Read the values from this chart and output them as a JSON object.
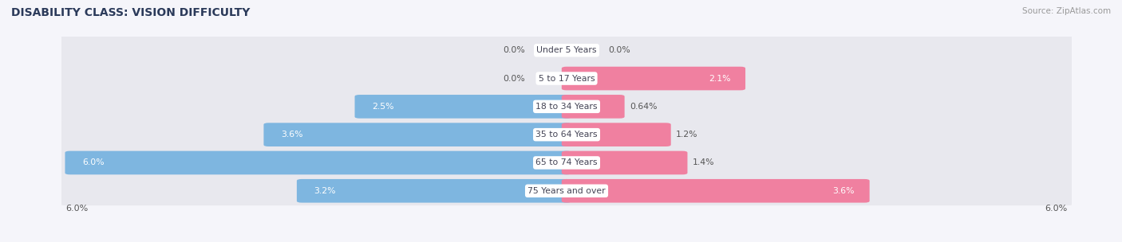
{
  "title": "DISABILITY CLASS: VISION DIFFICULTY",
  "source": "Source: ZipAtlas.com",
  "categories": [
    "Under 5 Years",
    "5 to 17 Years",
    "18 to 34 Years",
    "35 to 64 Years",
    "65 to 74 Years",
    "75 Years and over"
  ],
  "male_values": [
    0.0,
    0.0,
    2.5,
    3.6,
    6.0,
    3.2
  ],
  "female_values": [
    0.0,
    2.1,
    0.64,
    1.2,
    1.4,
    3.6
  ],
  "male_labels": [
    "0.0%",
    "0.0%",
    "2.5%",
    "3.6%",
    "6.0%",
    "3.2%"
  ],
  "female_labels": [
    "0.0%",
    "2.1%",
    "0.64%",
    "1.2%",
    "1.4%",
    "3.6%"
  ],
  "male_color": "#7EB6E0",
  "female_color": "#F080A0",
  "row_bg_color": "#E8E8EE",
  "background_color": "#F5F5FA",
  "max_value": 6.0,
  "title_color": "#2B3A5A",
  "source_color": "#999999",
  "label_color_dark": "#555555",
  "label_color_light": "#ffffff"
}
